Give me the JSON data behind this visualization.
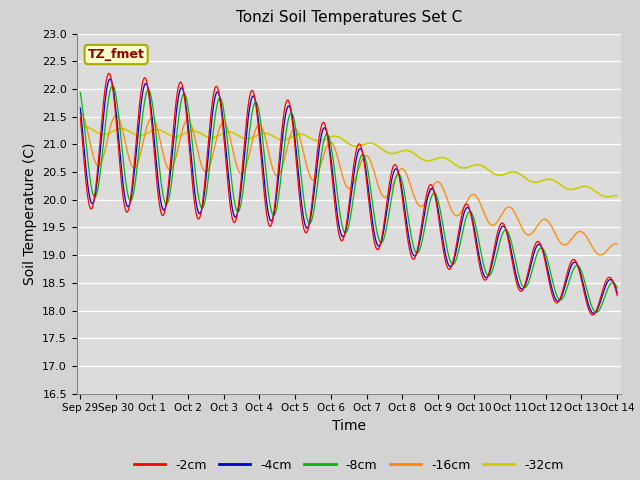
{
  "title": "Tonzi Soil Temperatures Set C",
  "xlabel": "Time",
  "ylabel": "Soil Temperature (C)",
  "ylim": [
    16.5,
    23.0
  ],
  "annotation_label": "TZ_fmet",
  "annotation_color": "#8B0000",
  "annotation_bg": "#FFFFCC",
  "fig_bg_color": "#D3D3D3",
  "plot_bg": "#DCDCDC",
  "series_colors": {
    "-2cm": "#FF0000",
    "-4cm": "#0000CC",
    "-8cm": "#00BB00",
    "-16cm": "#FF8800",
    "-32cm": "#CCCC00"
  },
  "x_tick_labels": [
    "Sep 29",
    "Sep 30",
    "Oct 1",
    "Oct 2",
    "Oct 3",
    "Oct 4",
    "Oct 5",
    "Oct 6",
    "Oct 7",
    "Oct 8",
    "Oct 9",
    "Oct 10",
    "Oct 11",
    "Oct 12",
    "Oct 13",
    "Oct 14"
  ]
}
